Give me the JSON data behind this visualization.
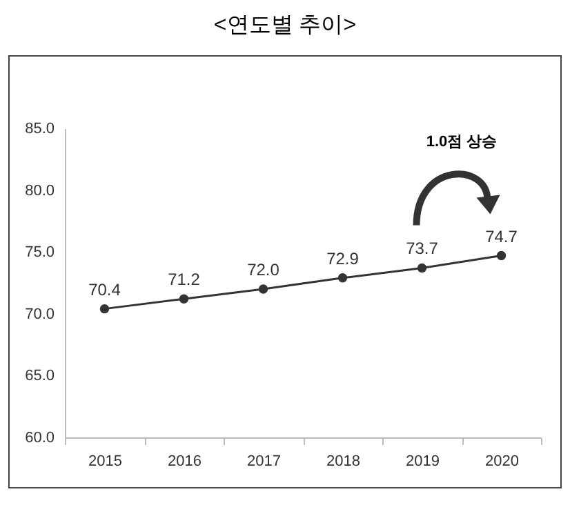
{
  "chart_data": {
    "type": "line",
    "title": "<연도별 추이>",
    "categories": [
      "2015",
      "2016",
      "2017",
      "2018",
      "2019",
      "2020"
    ],
    "series": [
      {
        "color": "#333333",
        "values": [
          70.4,
          71.2,
          72.0,
          72.9,
          73.7,
          74.7
        ],
        "value_labels": [
          "70.4",
          "71.2",
          "72.0",
          "72.9",
          "73.7",
          "74.7"
        ]
      }
    ],
    "ylim": [
      60,
      85
    ],
    "yticks": [
      {
        "value": 60,
        "label": "60.0"
      },
      {
        "value": 65,
        "label": "65.0"
      },
      {
        "value": 70,
        "label": "70.0"
      },
      {
        "value": 75,
        "label": "75.0"
      },
      {
        "value": 80,
        "label": "80.0"
      },
      {
        "value": 85,
        "label": "85.0"
      }
    ],
    "annotations": [
      "1.0점 상승"
    ],
    "grid": false,
    "legend": false,
    "marker": "circle",
    "line_style": "solid"
  }
}
